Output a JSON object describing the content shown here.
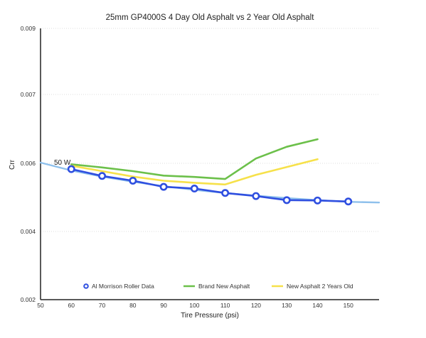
{
  "chart_data": {
    "type": "line",
    "title": "25mm GP4000S 4 Day Old Asphalt vs 2 Year Old Asphalt",
    "xlabel": "Tire Pressure (psi)",
    "ylabel": "Crr",
    "xlim": [
      50,
      160
    ],
    "ylim": [
      0.002,
      0.009
    ],
    "x_ticks": [
      "50",
      "60",
      "70",
      "80",
      "90",
      "100",
      "110",
      "120",
      "130",
      "140",
      "150"
    ],
    "y_ticks": [
      "0.002",
      "0.004",
      "0.006",
      "0.007",
      "0.009"
    ],
    "annotation": "50 W",
    "grid": true,
    "legend_position": "bottom",
    "series": [
      {
        "name": "Al Morrison Roller Data",
        "color": "#2f4fe0",
        "marker": "circle",
        "x": [
          60,
          70,
          80,
          90,
          100,
          110,
          120,
          130,
          140,
          150
        ],
        "y": [
          0.00583,
          0.00563,
          0.00549,
          0.00531,
          0.00526,
          0.00513,
          0.00504,
          0.00492,
          0.00491,
          0.00488
        ]
      },
      {
        "name": "",
        "color": "#8ec0ec",
        "marker": "none",
        "x": [
          50,
          60,
          70,
          80,
          90,
          100,
          110,
          120,
          130,
          140,
          150,
          160
        ],
        "y": [
          0.00601,
          0.00579,
          0.00561,
          0.00546,
          0.00533,
          0.00522,
          0.00513,
          0.00505,
          0.00498,
          0.00492,
          0.00487,
          0.00485
        ]
      },
      {
        "name": "Brand New Asphalt",
        "color": "#6cc04a",
        "marker": "none",
        "x": [
          60,
          70,
          80,
          90,
          100,
          110,
          120,
          130,
          140
        ],
        "y": [
          0.00597,
          0.00588,
          0.00577,
          0.00564,
          0.0056,
          0.00554,
          0.00607,
          0.00624,
          0.00635
        ]
      },
      {
        "name": "New Asphalt 2 Years Old",
        "color": "#f6e14a",
        "marker": "none",
        "x": [
          60,
          70,
          80,
          90,
          100,
          110,
          120,
          130,
          140
        ],
        "y": [
          0.00593,
          0.00577,
          0.00561,
          0.00549,
          0.00543,
          0.00538,
          0.00566,
          0.00589,
          0.00606
        ]
      }
    ]
  }
}
